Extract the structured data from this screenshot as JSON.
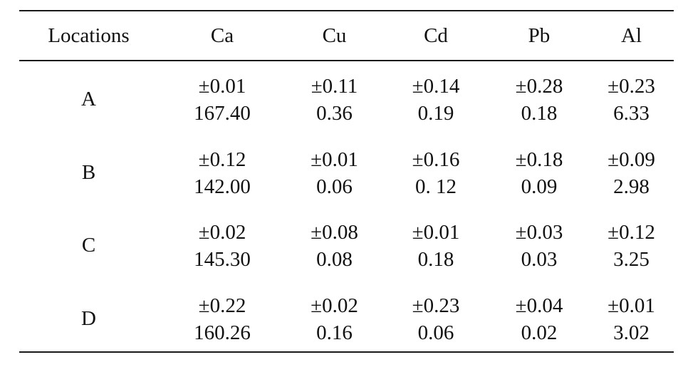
{
  "table": {
    "headers": [
      "Locations",
      "Ca",
      "Cu",
      "Cd",
      "Pb",
      "Al"
    ],
    "rows": [
      {
        "location": "A",
        "cells": [
          {
            "sd": "±0.01",
            "mean": "167.40"
          },
          {
            "sd": "±0.11",
            "mean": "0.36"
          },
          {
            "sd": "±0.14",
            "mean": "0.19"
          },
          {
            "sd": "±0.28",
            "mean": "0.18"
          },
          {
            "sd": "±0.23",
            "mean": "6.33"
          }
        ]
      },
      {
        "location": "B",
        "cells": [
          {
            "sd": "±0.12",
            "mean": "142.00"
          },
          {
            "sd": "±0.01",
            "mean": "0.06"
          },
          {
            "sd": "±0.16",
            "mean": "0. 12"
          },
          {
            "sd": "±0.18",
            "mean": "0.09"
          },
          {
            "sd": "±0.09",
            "mean": "2.98"
          }
        ]
      },
      {
        "location": "C",
        "cells": [
          {
            "sd": "±0.02",
            "mean": "145.30"
          },
          {
            "sd": "±0.08",
            "mean": "0.08"
          },
          {
            "sd": "±0.01",
            "mean": "0.18"
          },
          {
            "sd": "±0.03",
            "mean": "0.03"
          },
          {
            "sd": "±0.12",
            "mean": "3.25"
          }
        ]
      },
      {
        "location": "D",
        "cells": [
          {
            "sd": "±0.22",
            "mean": "160.26"
          },
          {
            "sd": "±0.02",
            "mean": "0.16"
          },
          {
            "sd": "±0.23",
            "mean": "0.06"
          },
          {
            "sd": "±0.04",
            "mean": "0.02"
          },
          {
            "sd": "±0.01",
            "mean": "3.02"
          }
        ]
      }
    ]
  }
}
